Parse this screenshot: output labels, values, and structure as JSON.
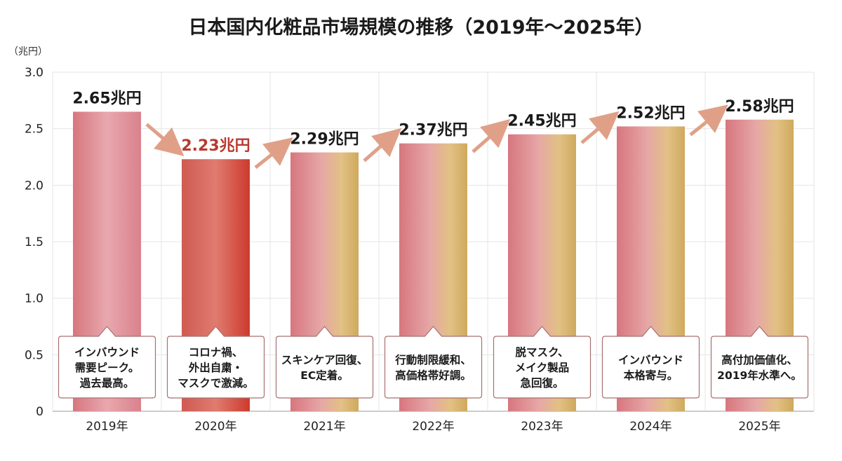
{
  "chart_data": {
    "type": "bar",
    "title": "日本国内化粧品市場規模の推移（2019年～2025年）",
    "ylabel": "（兆円）",
    "xlabel": "",
    "ylim": [
      0,
      3.0
    ],
    "yticks": [
      "0",
      "0.5",
      "1.0",
      "1.5",
      "2.0",
      "2.5",
      "3.0"
    ],
    "grid": true,
    "categories": [
      "2019年",
      "2020年",
      "2021年",
      "2022年",
      "2023年",
      "2024年",
      "2025年"
    ],
    "values": [
      2.65,
      2.23,
      2.29,
      2.37,
      2.45,
      2.52,
      2.58
    ],
    "data_labels": [
      "2.65兆円",
      "2.23兆円",
      "2.29兆円",
      "2.37兆円",
      "2.45兆円",
      "2.52兆円",
      "2.58兆円"
    ],
    "annotations": [
      [
        "インバウンド",
        "需要ピーク。",
        "過去最高。"
      ],
      [
        "コロナ禍、",
        "外出自粛・",
        "マスクで激減。"
      ],
      [
        "スキンケア回復、",
        "EC定着。"
      ],
      [
        "行動制限緩和、",
        "高価格帯好調。"
      ],
      [
        "脱マスク、",
        "メイク製品",
        "急回復。"
      ],
      [
        "インバウンド",
        "本格寄与。"
      ],
      [
        "高付加価値化、",
        "2019年水準へ。"
      ]
    ],
    "colors": {
      "pink": "#d9818c",
      "gold": "#d9b86e",
      "red": "#d2463a",
      "highlight_label": "#b83a30",
      "arrow": "#e0a088",
      "text": "#1a1a1a"
    }
  }
}
